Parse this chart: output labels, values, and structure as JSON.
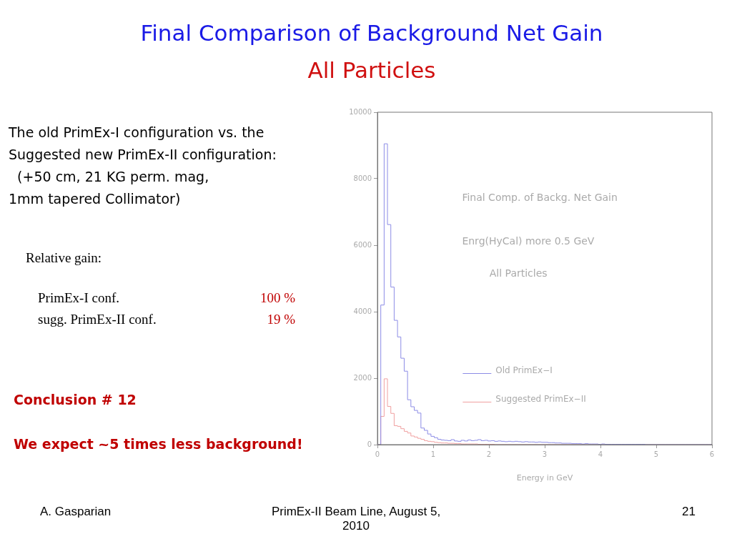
{
  "chart_data": {
    "type": "histogram",
    "title": "Final Comparison of Background Net Gain",
    "subtitle": "All Particles",
    "xlabel": "Energy in GeV",
    "bins": [
      0,
      0.06,
      0.12,
      0.18,
      0.24,
      0.3,
      0.36,
      0.42,
      0.48,
      0.54,
      0.6,
      0.66,
      0.72,
      0.78,
      0.84,
      0.9,
      0.96,
      1.02,
      1.08,
      1.14,
      1.2,
      1.26,
      1.32,
      1.38,
      1.44,
      1.5,
      1.56,
      1.62,
      1.68,
      1.74,
      1.8,
      1.86,
      1.92,
      1.98,
      2.04,
      2.1,
      2.16,
      2.22,
      2.28,
      2.34,
      2.4,
      2.46,
      2.52,
      2.58,
      2.64,
      2.7,
      2.76,
      2.82,
      2.88,
      2.94,
      3,
      3.06,
      3.12,
      3.18,
      3.24,
      3.3,
      3.36,
      3.42,
      3.48,
      3.54,
      3.6,
      3.66,
      3.72,
      3.78,
      3.84,
      3.9,
      3.96,
      4.02,
      4.08,
      4.14,
      4.2,
      4.26,
      4.32,
      4.38,
      4.44,
      4.5,
      4.56,
      4.62,
      4.68,
      4.74,
      4.8,
      4.86,
      4.92,
      4.98,
      5.04,
      5.1,
      5.16,
      5.22,
      5.28,
      5.34,
      5.4,
      5.46,
      5.52,
      5.58,
      5.64,
      5.7,
      5.76,
      5.82,
      5.88,
      5.94,
      6
    ],
    "series": [
      {
        "name": "Old PrimEx−I",
        "color": "#8c8ce6",
        "values": [
          0,
          4200,
          9050,
          6620,
          4740,
          3740,
          3240,
          2600,
          2210,
          1350,
          1140,
          1030,
          950,
          500,
          430,
          320,
          250,
          210,
          160,
          140,
          130,
          120,
          150,
          110,
          100,
          130,
          110,
          140,
          120,
          130,
          150,
          120,
          130,
          110,
          120,
          100,
          110,
          100,
          90,
          100,
          90,
          100,
          90,
          80,
          90,
          80,
          80,
          70,
          80,
          70,
          70,
          60,
          60,
          50,
          50,
          40,
          40,
          40,
          30,
          30,
          30,
          20,
          30,
          20,
          20,
          20,
          10,
          20,
          10,
          10,
          10,
          10,
          10,
          10,
          10,
          10,
          10,
          10,
          10,
          10,
          0,
          0,
          0,
          0,
          0,
          0,
          0,
          0,
          0,
          0,
          0,
          0,
          0,
          0,
          0,
          0,
          0,
          0,
          0,
          0
        ]
      },
      {
        "name": "Suggested PrimEx−II",
        "color": "#f0a0a0",
        "values": [
          0,
          850,
          1980,
          1150,
          940,
          570,
          550,
          480,
          400,
          350,
          260,
          230,
          190,
          160,
          120,
          100,
          90,
          70,
          60,
          50,
          50,
          40,
          40,
          30,
          30,
          20,
          20,
          20,
          20,
          20,
          10,
          10,
          10,
          10,
          10,
          0,
          0,
          0,
          0,
          0,
          0,
          0,
          0,
          0,
          0,
          0,
          0,
          0,
          0,
          0,
          0,
          0,
          0,
          0,
          0,
          0,
          0,
          0,
          0,
          0,
          0,
          0,
          0,
          0,
          0,
          0,
          0,
          0,
          0,
          0,
          0,
          0,
          0,
          0,
          0,
          0,
          0,
          0,
          0,
          0,
          0,
          0,
          0,
          0,
          0,
          0,
          0,
          0,
          0,
          0,
          0,
          0,
          0,
          0,
          0,
          0,
          0,
          0,
          0,
          0
        ]
      }
    ],
    "xlim": [
      0,
      6
    ],
    "xticks": [
      0,
      1,
      2,
      3,
      4,
      5,
      6
    ],
    "ylim": [
      0,
      10000
    ],
    "yticks": [
      0,
      2000,
      4000,
      6000,
      8000,
      10000
    ],
    "grid": false,
    "legend": "bottom",
    "annotations": [
      "The old PrimEx-I configuration vs. the\nSuggested new PrimEx-II configuration:\n  (+50 cm, 21 KG perm. mag,\n1mm tapered Collimator)",
      "Relative gain:",
      "PrimEx-I conf.",
      "100 %",
      "sugg. PrimEx-II conf.",
      "19 %",
      "Conclusion # 12",
      "We expect ~5 times less background!",
      "Final Comp. of Backg. Net Gain",
      "Enrg(HyCal) more 0.5 GeV",
      "All Particles",
      "A. Gasparian",
      "PrimEx-II Beam Line, August 5,\n2010",
      "21"
    ]
  }
}
